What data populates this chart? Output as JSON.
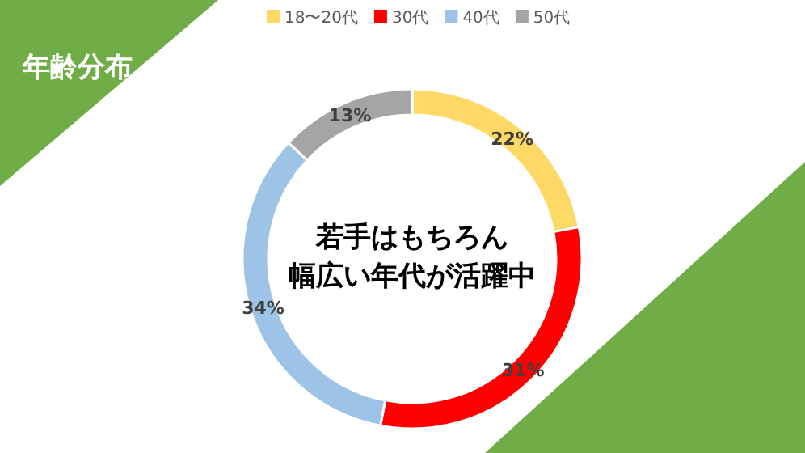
{
  "chart_data": {
    "type": "donut",
    "title": "年齢分布",
    "categories": [
      "18〜20代",
      "30代",
      "40代",
      "50代"
    ],
    "values": [
      22,
      31,
      34,
      13
    ],
    "colors": [
      "#ffd966",
      "#ff0000",
      "#9dc3e6",
      "#a5a5a5"
    ],
    "value_labels": [
      "22%",
      "31%",
      "34%",
      "13%"
    ],
    "legend": "top",
    "annotations": [
      "若手はもちろん",
      "幅広い年代が活躍中"
    ]
  }
}
